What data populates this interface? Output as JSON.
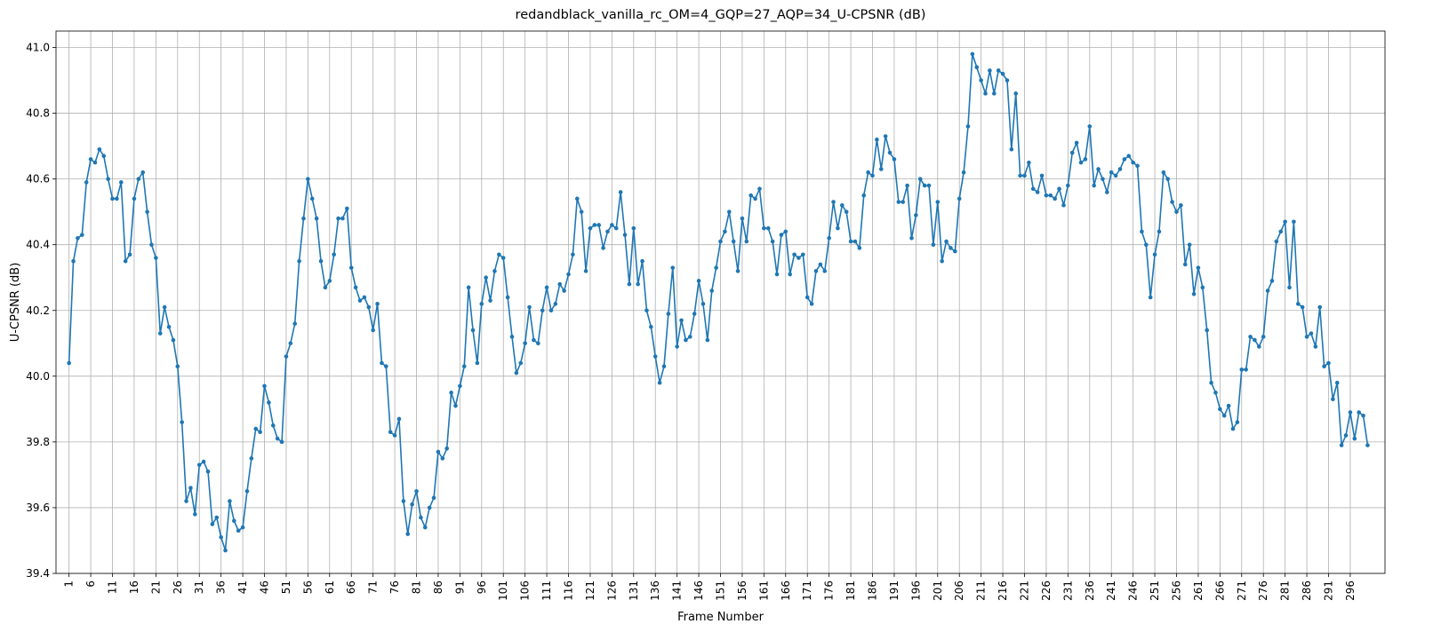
{
  "chart_data": {
    "type": "line",
    "title": "redandblack_vanilla_rc_OM=4_GQP=27_AQP=34_U-CPSNR (dB)",
    "xlabel": "Frame Number",
    "ylabel": "U-CPSNR (dB)",
    "xlim": [
      -2,
      304
    ],
    "ylim": [
      39.4,
      41.05
    ],
    "grid": true,
    "x_ticks": [
      "1",
      "6",
      "11",
      "16",
      "21",
      "26",
      "31",
      "36",
      "41",
      "46",
      "51",
      "56",
      "61",
      "66",
      "71",
      "76",
      "81",
      "86",
      "91",
      "96",
      "101",
      "106",
      "111",
      "116",
      "121",
      "126",
      "131",
      "136",
      "141",
      "146",
      "151",
      "156",
      "161",
      "166",
      "171",
      "176",
      "181",
      "186",
      "191",
      "196",
      "201",
      "206",
      "211",
      "216",
      "221",
      "226",
      "231",
      "236",
      "241",
      "246",
      "251",
      "256",
      "261",
      "266",
      "271",
      "276",
      "281",
      "286",
      "291",
      "296"
    ],
    "y_ticks": [
      "39.4",
      "39.6",
      "39.8",
      "40.0",
      "40.2",
      "40.4",
      "40.6",
      "40.8",
      "41.0"
    ],
    "color": "#1f77b4",
    "series": [
      {
        "x_start": 1,
        "values": [
          40.04,
          40.35,
          40.42,
          40.43,
          40.59,
          40.66,
          40.65,
          40.69,
          40.67,
          40.6,
          40.54,
          40.54,
          40.59,
          40.35,
          40.37,
          40.54,
          40.6,
          40.62,
          40.5,
          40.4,
          40.36,
          40.13,
          40.21,
          40.15,
          40.11,
          40.03,
          39.86,
          39.62,
          39.66,
          39.58,
          39.73,
          39.74,
          39.71,
          39.55,
          39.57,
          39.51,
          39.47,
          39.62,
          39.56,
          39.53,
          39.54,
          39.65,
          39.75,
          39.84,
          39.83,
          39.97,
          39.92,
          39.85,
          39.81,
          39.8,
          40.06,
          40.1,
          40.16,
          40.35,
          40.48,
          40.6,
          40.54,
          40.48,
          40.35,
          40.27,
          40.29,
          40.37,
          40.48,
          40.48,
          40.51,
          40.33,
          40.27,
          40.23,
          40.24,
          40.21,
          40.14,
          40.22,
          40.04,
          40.03,
          39.83,
          39.82,
          39.87,
          39.62,
          39.52,
          39.61,
          39.65,
          39.57,
          39.54,
          39.6,
          39.63,
          39.77,
          39.75,
          39.78,
          39.95,
          39.91,
          39.97,
          40.03,
          40.27,
          40.14,
          40.04,
          40.22,
          40.3,
          40.23,
          40.32,
          40.37,
          40.36,
          40.24,
          40.12,
          40.01,
          40.04,
          40.1,
          40.21,
          40.11,
          40.1,
          40.2,
          40.27,
          40.2,
          40.22,
          40.28,
          40.26,
          40.31,
          40.37,
          40.54,
          40.5,
          40.32,
          40.45,
          40.46,
          40.46,
          40.39,
          40.44,
          40.46,
          40.45,
          40.56,
          40.43,
          40.28,
          40.45,
          40.28,
          40.35,
          40.2,
          40.15,
          40.06,
          39.98,
          40.03,
          40.19,
          40.33,
          40.09,
          40.17,
          40.11,
          40.12,
          40.19,
          40.29,
          40.22,
          40.11,
          40.26,
          40.33,
          40.41,
          40.44,
          40.5,
          40.41,
          40.32,
          40.48,
          40.41,
          40.55,
          40.54,
          40.57,
          40.45,
          40.45,
          40.41,
          40.31,
          40.43,
          40.44,
          40.31,
          40.37,
          40.36,
          40.37,
          40.24,
          40.22,
          40.32,
          40.34,
          40.32,
          40.42,
          40.53,
          40.45,
          40.52,
          40.5,
          40.41,
          40.41,
          40.39,
          40.55,
          40.62,
          40.61,
          40.72,
          40.63,
          40.73,
          40.68,
          40.66,
          40.53,
          40.53,
          40.58,
          40.42,
          40.49,
          40.6,
          40.58,
          40.58,
          40.4,
          40.53,
          40.35,
          40.41,
          40.39,
          40.38,
          40.54,
          40.62,
          40.76,
          40.98,
          40.94,
          40.9,
          40.86,
          40.93,
          40.86,
          40.93,
          40.92,
          40.9,
          40.69,
          40.86,
          40.61,
          40.61,
          40.65,
          40.57,
          40.56,
          40.61,
          40.55,
          40.55,
          40.54,
          40.57,
          40.52,
          40.58,
          40.68,
          40.71,
          40.65,
          40.66,
          40.76,
          40.58,
          40.63,
          40.6,
          40.56,
          40.62,
          40.61,
          40.63,
          40.66,
          40.67,
          40.65,
          40.64,
          40.44,
          40.4,
          40.24,
          40.37,
          40.44,
          40.62,
          40.6,
          40.53,
          40.5,
          40.52,
          40.34,
          40.4,
          40.25,
          40.33,
          40.27,
          40.14,
          39.98,
          39.95,
          39.9,
          39.88,
          39.91,
          39.84,
          39.86,
          40.02,
          40.02,
          40.12,
          40.11,
          40.09,
          40.12,
          40.26,
          40.29,
          40.41,
          40.44,
          40.47,
          40.27,
          40.47,
          40.22,
          40.21,
          40.12,
          40.13,
          40.09,
          40.21,
          40.03,
          40.04,
          39.93,
          39.98,
          39.79,
          39.82,
          39.89,
          39.81,
          39.89,
          39.88,
          39.79
        ]
      }
    ]
  }
}
